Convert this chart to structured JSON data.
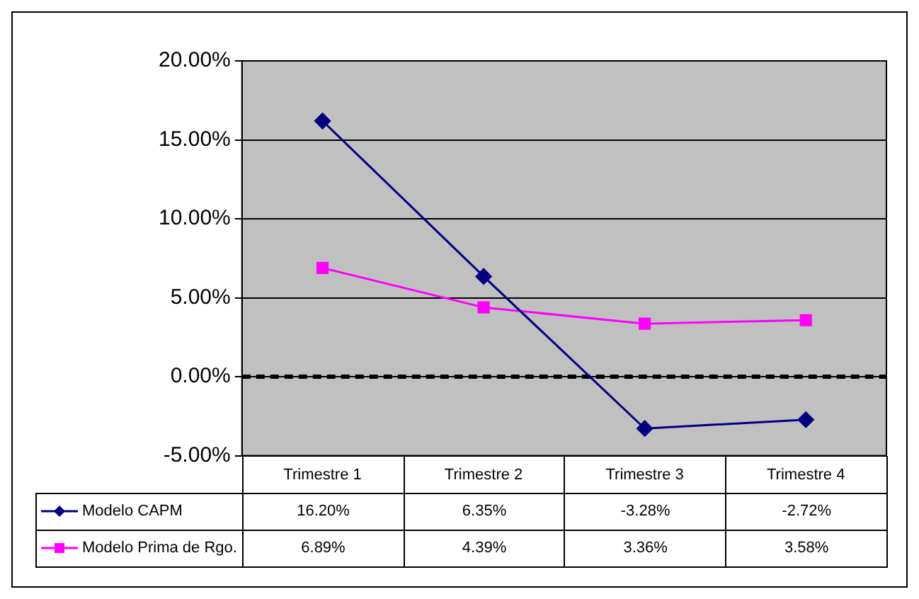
{
  "chart_data": {
    "type": "line",
    "categories": [
      "Trimestre 1",
      "Trimestre 2",
      "Trimestre 3",
      "Trimestre 4"
    ],
    "series": [
      {
        "name": "Modelo CAPM",
        "color": "#000080",
        "marker": "diamond",
        "values": [
          16.2,
          6.35,
          -3.28,
          -2.72
        ],
        "value_labels": [
          "16.20%",
          "6.35%",
          "-3.28%",
          "-2.72%"
        ]
      },
      {
        "name": "Modelo Prima de Rgo.",
        "color": "#ff00ff",
        "marker": "square",
        "values": [
          6.89,
          4.39,
          3.36,
          3.58
        ],
        "value_labels": [
          "6.89%",
          "4.39%",
          "3.36%",
          "3.58%"
        ]
      }
    ],
    "ylim": [
      -5,
      20
    ],
    "yticks": [
      {
        "value": -5,
        "label": "-5.00%"
      },
      {
        "value": 0,
        "label": "0.00%"
      },
      {
        "value": 5,
        "label": "5.00%"
      },
      {
        "value": 10,
        "label": "10.00%"
      },
      {
        "value": 15,
        "label": "15.00%"
      },
      {
        "value": 20,
        "label": "20.00%"
      }
    ],
    "grid": "y",
    "legend": "bottom",
    "line_style": "solid",
    "ref_lines": [
      {
        "axis": "y",
        "value": 0,
        "color": "#000000",
        "line_style": "dashed"
      }
    ]
  }
}
